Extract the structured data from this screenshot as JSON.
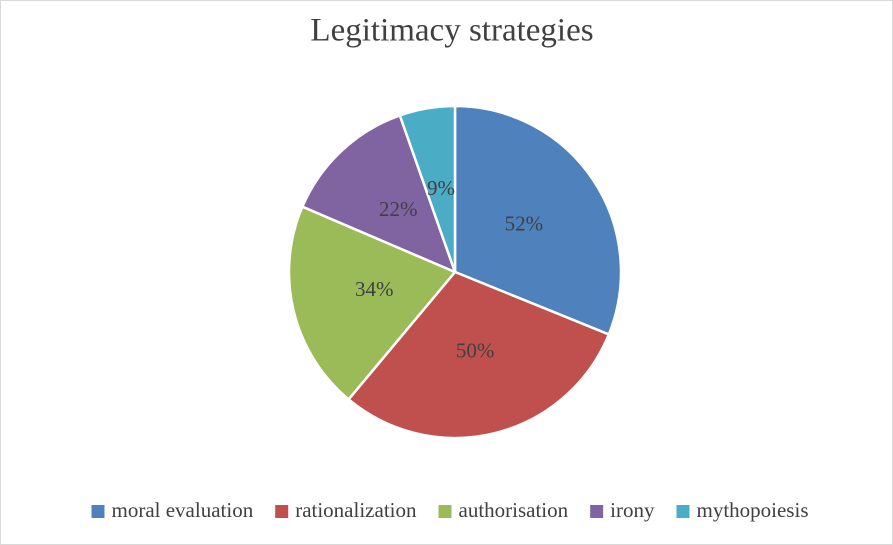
{
  "chart_data": {
    "type": "pie",
    "title": "Legitimacy strategies",
    "categories": [
      "moral evaluation",
      "rationalization",
      "authorisation",
      "irony",
      "mythopoiesis"
    ],
    "values": [
      52,
      50,
      34,
      22,
      9
    ],
    "value_labels": [
      "52%",
      "50%",
      "34%",
      "22%",
      "9%"
    ],
    "colors": [
      "#4f81bd",
      "#c0504d",
      "#9bbb59",
      "#8064a2",
      "#4bacc6"
    ],
    "legend": "bottom"
  }
}
